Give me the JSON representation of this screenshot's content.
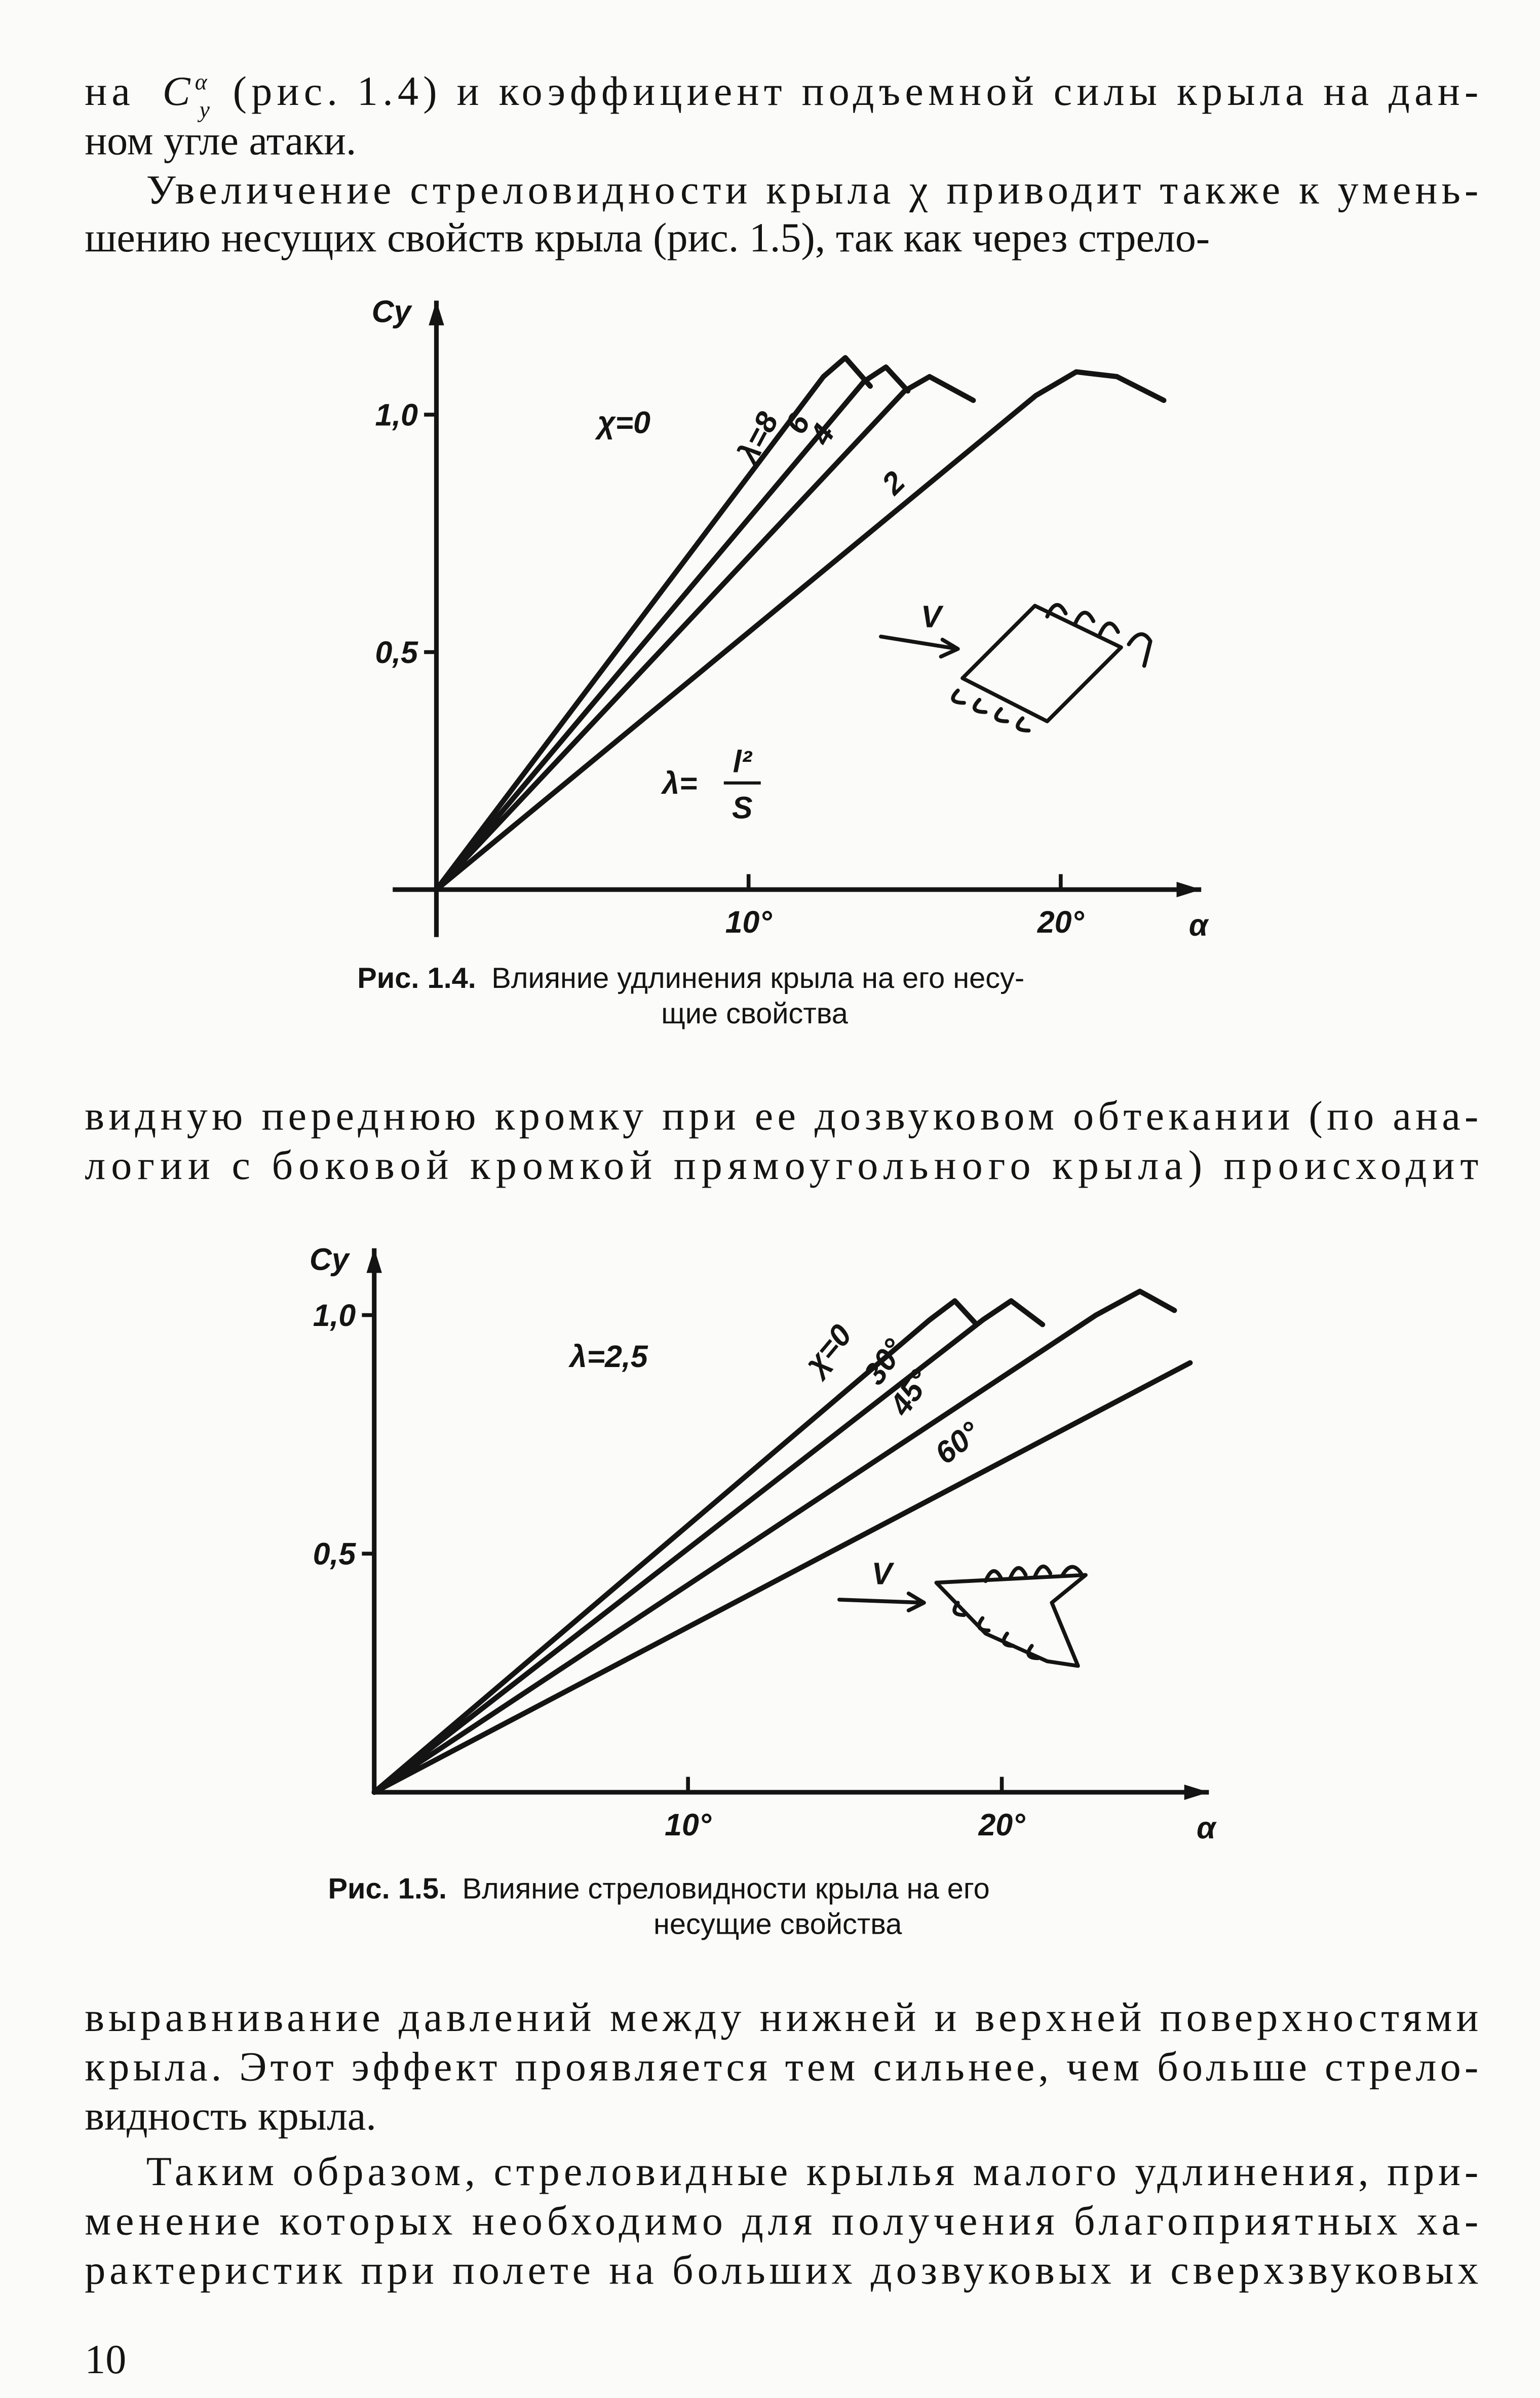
{
  "paragraphs": [
    {
      "lines": [
        {
          "before": "на",
          "symbol": "C",
          "sup": "α",
          "sub": "y",
          "after": "(рис. 1.4) и коэффициент подъемной силы крыла на дан-"
        },
        "ном угле атаки."
      ]
    },
    {
      "lines": [
        "Увеличение стреловидности крыла χ приводит также к умень-",
        "шению несущих свойств крыла (рис. 1.5), так как через стрело-"
      ]
    },
    {
      "lines": [
        "видную переднюю кромку при ее дозвуковом обтекании (по ана-",
        "логии с боковой кромкой прямоугольного крыла) происходит"
      ]
    },
    {
      "lines": [
        "выравнивание давлений между нижней и верхней поверхностями",
        "крыла. Этот эффект проявляется тем сильнее, чем больше стрело-",
        "видность крыла."
      ]
    },
    {
      "lines": [
        "Таким образом, стреловидные крылья малого удлинения, при-",
        "менение которых необходимо для получения благоприятных ха-",
        "рактеристик при полете на больших дозвуковых и сверхзвуковых"
      ]
    }
  ],
  "page_number": "10",
  "chart_data": [
    {
      "type": "line",
      "figure_label": "Рис. 1.4.",
      "caption": [
        "Влияние удлинения крыла на его несу-",
        "щие свойства"
      ],
      "x_label": "α",
      "y_label": "Cy",
      "xlim": [
        -1.4,
        24.5
      ],
      "ylim": [
        -0.1,
        1.24
      ],
      "xticks": [
        {
          "value": 10,
          "label": "10°"
        },
        {
          "value": 20,
          "label": "20°"
        }
      ],
      "yticks": [
        {
          "value": 0.5,
          "label": "0,5"
        },
        {
          "value": 1.0,
          "label": "1,0"
        }
      ],
      "annotations": [
        "χ=0",
        "V"
      ],
      "formula": {
        "lhs": "λ=",
        "numerator": "l²",
        "denominator": "S"
      },
      "series": [
        {
          "name": "λ=8",
          "color": "#141414",
          "x": [
            0,
            12.4,
            13.1,
            13.9
          ],
          "values": [
            0,
            1.08,
            1.12,
            1.06
          ]
        },
        {
          "name": "6",
          "color": "#141414",
          "x": [
            0,
            13.7,
            14.4,
            15.1
          ],
          "values": [
            0,
            1.07,
            1.1,
            1.05
          ]
        },
        {
          "name": "4",
          "color": "#141414",
          "x": [
            0,
            15.0,
            15.8,
            17.2
          ],
          "values": [
            0,
            1.05,
            1.08,
            1.03
          ]
        },
        {
          "name": "2",
          "color": "#141414",
          "x": [
            0,
            19.2,
            20.5,
            21.8,
            23.3
          ],
          "values": [
            0,
            1.04,
            1.09,
            1.08,
            1.03
          ]
        }
      ]
    },
    {
      "type": "line",
      "figure_label": "Рис. 1.5.",
      "caption": [
        "Влияние стреловидности крыла на его",
        "несущие свойства"
      ],
      "x_label": "α",
      "y_label": "Cy",
      "xlim": [
        0,
        26.6
      ],
      "ylim": [
        0,
        1.14
      ],
      "xticks": [
        {
          "value": 10,
          "label": "10°"
        },
        {
          "value": 20,
          "label": "20°"
        }
      ],
      "yticks": [
        {
          "value": 0.5,
          "label": "0,5"
        },
        {
          "value": 1.0,
          "label": "1,0"
        }
      ],
      "annotations": [
        "λ=2,5",
        "V"
      ],
      "series": [
        {
          "name": "χ=0",
          "color": "#141414",
          "x": [
            0,
            17.7,
            18.5,
            19.2
          ],
          "values": [
            0,
            0.99,
            1.03,
            0.98
          ]
        },
        {
          "name": "30°",
          "color": "#141414",
          "x": [
            0,
            19.4,
            20.3,
            21.3
          ],
          "values": [
            0,
            0.99,
            1.03,
            0.98
          ]
        },
        {
          "name": "45°",
          "color": "#141414",
          "x": [
            0,
            23.0,
            24.4,
            25.5
          ],
          "values": [
            0,
            1.0,
            1.05,
            1.01
          ]
        },
        {
          "name": "60°",
          "color": "#141414",
          "x": [
            0,
            26.0
          ],
          "values": [
            0,
            0.9
          ]
        }
      ]
    }
  ]
}
